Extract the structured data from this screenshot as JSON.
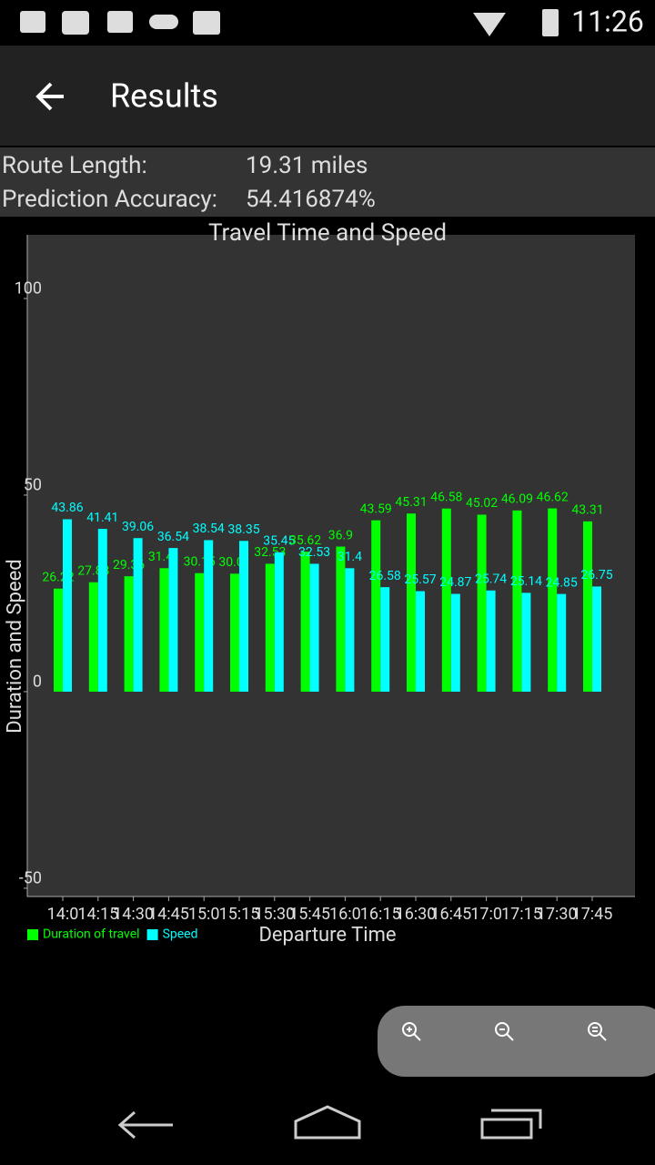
{
  "status_bar": {
    "time": "11:26"
  },
  "app_bar": {
    "title": "Results"
  },
  "route_info": {
    "length_label": "Route Length:",
    "length_value": "19.31 miles",
    "accuracy_label": "Prediction Accuracy:",
    "accuracy_value": "54.416874%"
  },
  "chart_data": {
    "type": "bar",
    "title": "Travel Time and Speed",
    "x_label": "Departure Time",
    "y_label": "Duration and Speed",
    "categories": [
      "14:0",
      "14:15",
      "14:30",
      "14:45",
      "15:0",
      "15:15",
      "15:30",
      "15:45",
      "16:0",
      "16:15",
      "16:30",
      "16:45",
      "17:0",
      "17:15",
      "17:30",
      "17:45"
    ],
    "series": [
      {
        "name": "Duration of travel",
        "color": "#00ff00",
        "values": [
          26.22,
          27.83,
          29.36,
          31.41,
          30.15,
          30.01,
          32.53,
          35.62,
          36.9,
          43.59,
          45.31,
          46.58,
          45.02,
          46.09,
          46.62,
          43.31
        ]
      },
      {
        "name": "Speed",
        "color": "#00ffff",
        "values": [
          43.86,
          41.41,
          39.06,
          36.54,
          38.54,
          38.35,
          35.45,
          32.53,
          31.4,
          26.58,
          25.57,
          24.87,
          25.74,
          25.14,
          24.85,
          26.75
        ]
      }
    ],
    "ylim": [
      -52.1,
      116.2
    ],
    "yticks": [
      -50,
      0,
      50,
      100
    ],
    "grid": false,
    "legend": "bottom-left"
  }
}
